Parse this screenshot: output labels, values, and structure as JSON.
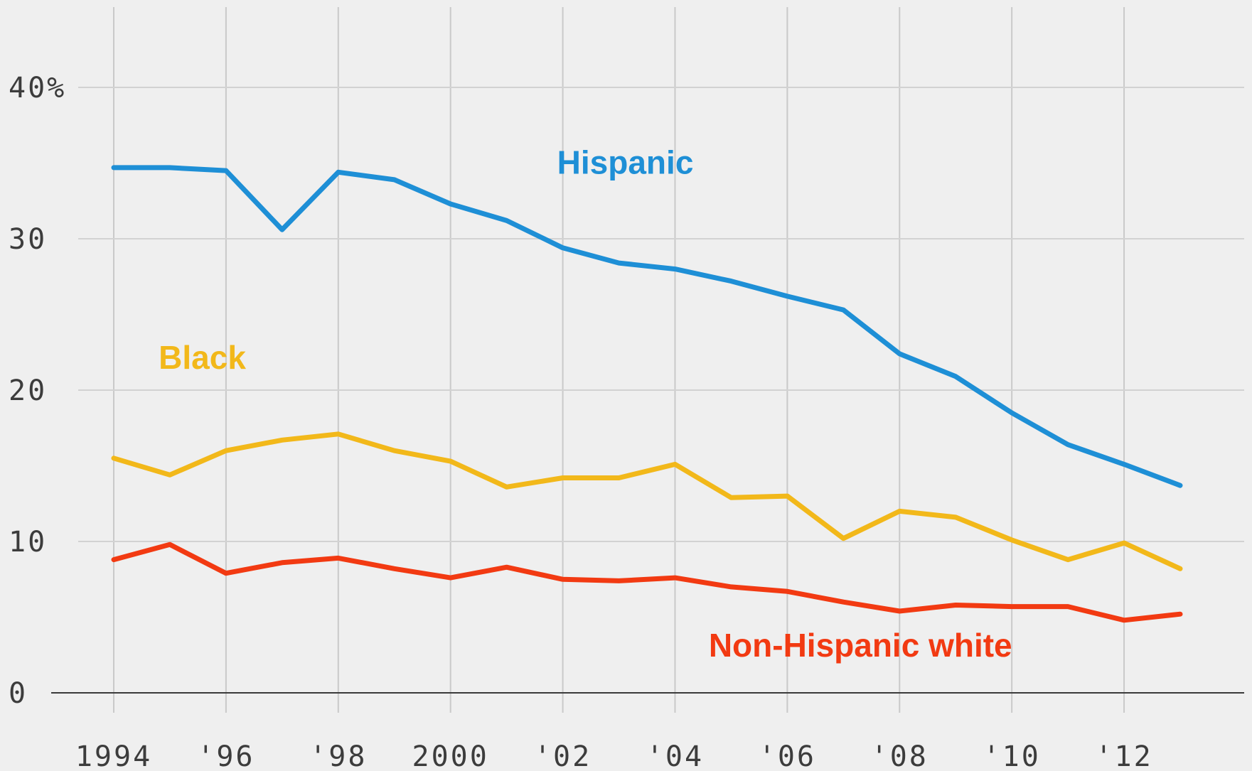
{
  "chart_data": {
    "type": "line",
    "title": "",
    "xlabel": "",
    "ylabel": "",
    "x": [
      1994,
      1995,
      1996,
      1997,
      1998,
      1999,
      2000,
      2001,
      2002,
      2003,
      2004,
      2005,
      2006,
      2007,
      2008,
      2009,
      2010,
      2011,
      2012,
      2013
    ],
    "x_tick_values": [
      1994,
      1996,
      1998,
      2000,
      2002,
      2004,
      2006,
      2008,
      2010,
      2012
    ],
    "x_tick_labels": [
      "1994",
      "'96",
      "'98",
      "2000",
      "'02",
      "'04",
      "'06",
      "'08",
      "'10",
      "'12"
    ],
    "y_tick_values": [
      0,
      10,
      20,
      30,
      40
    ],
    "y_tick_labels": [
      "0",
      "10",
      "20",
      "30",
      "40%"
    ],
    "xlim": [
      1994,
      2013
    ],
    "ylim": [
      0,
      40
    ],
    "grid": true,
    "legend": "inline labels",
    "series": [
      {
        "name": "Hispanic",
        "color": "#1e8fd6",
        "values": [
          34.7,
          34.7,
          34.5,
          30.6,
          34.4,
          33.9,
          32.3,
          31.2,
          29.4,
          28.4,
          28.0,
          27.2,
          26.2,
          25.3,
          22.4,
          20.9,
          18.5,
          16.4,
          15.1,
          13.7
        ]
      },
      {
        "name": "Black",
        "color": "#f2b81a",
        "values": [
          15.5,
          14.4,
          16.0,
          16.7,
          17.1,
          16.0,
          15.3,
          13.6,
          14.2,
          14.2,
          15.1,
          12.9,
          13.0,
          10.2,
          12.0,
          11.6,
          10.1,
          8.8,
          9.9,
          8.2
        ]
      },
      {
        "name": "Non-Hispanic white",
        "color": "#f23a12",
        "values": [
          8.8,
          9.8,
          7.9,
          8.6,
          8.9,
          8.2,
          7.6,
          8.3,
          7.5,
          7.4,
          7.6,
          7.0,
          6.7,
          6.0,
          5.4,
          5.8,
          5.7,
          5.7,
          4.8,
          5.2
        ]
      }
    ]
  }
}
